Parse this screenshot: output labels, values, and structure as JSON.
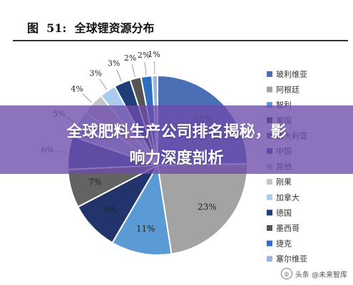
{
  "figure": {
    "title_prefix": "图",
    "number": "51:",
    "title": "全球锂资源分布"
  },
  "chart_data": {
    "type": "pie",
    "title": "全球锂资源分布",
    "unit": "%",
    "slices": [
      {
        "label": "玻利维亚",
        "value": 25,
        "display": "25%",
        "color": "#4a6fb5"
      },
      {
        "label": "阿根廷",
        "value": 23,
        "display": "23%",
        "color": "#a3a3a3"
      },
      {
        "label": "智利",
        "value": 11,
        "display": "11%",
        "color": "#5b9bd5"
      },
      {
        "label": "美国",
        "value": 9,
        "display": "9%",
        "color": "#22346b"
      },
      {
        "label": "澳大利亚",
        "value": 7,
        "display": "7%",
        "color": "#636363"
      },
      {
        "label": "中国",
        "value": 6,
        "display": "6%",
        "color": "#2f4f8f"
      },
      {
        "label": "其他",
        "value": 5,
        "display": "5%",
        "color": "#aec4e5"
      },
      {
        "label": "刚果",
        "value": 4,
        "display": "4%",
        "color": "#c5c5c5"
      },
      {
        "label": "加拿大",
        "value": 3,
        "display": "3%",
        "color": "#a8cbee"
      },
      {
        "label": "德国",
        "value": 3,
        "display": "3%",
        "color": "#1f3d78"
      },
      {
        "label": "墨西哥",
        "value": 2,
        "display": "2%",
        "color": "#555555"
      },
      {
        "label": "捷克",
        "value": 2,
        "display": "2%",
        "color": "#2e6fc2"
      },
      {
        "label": "塞尔维亚",
        "value": 1,
        "display": "1%",
        "color": "#9db8e0"
      }
    ],
    "legend_position": "right"
  },
  "banner": {
    "line1": "全球肥料生产公司排名揭秘，影",
    "line2": "响力深度剖析"
  },
  "watermark": {
    "text": "头条 @未来智库"
  }
}
